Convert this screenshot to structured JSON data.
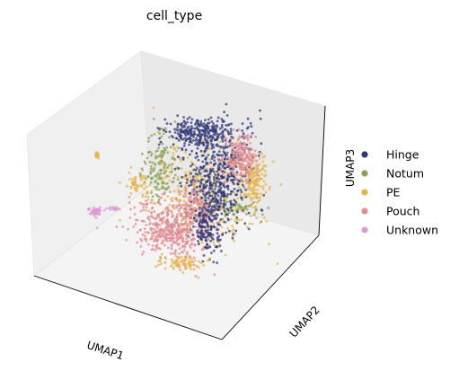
{
  "chart_data": {
    "type": "scatter",
    "projection": "3d",
    "title": "cell_type",
    "xlabel": "UMAP1",
    "ylabel": "UMAP2",
    "zlabel": "UMAP3",
    "ticks_shown": false,
    "grid": false,
    "legend_placement": "right",
    "series": [
      {
        "name": "Hinge",
        "color": "#33387a"
      },
      {
        "name": "Notum",
        "color": "#8aa050"
      },
      {
        "name": "PE",
        "color": "#e5b54a"
      },
      {
        "name": "Pouch",
        "color": "#e08c93"
      },
      {
        "name": "Unknown",
        "color": "#e09ad4"
      }
    ]
  }
}
